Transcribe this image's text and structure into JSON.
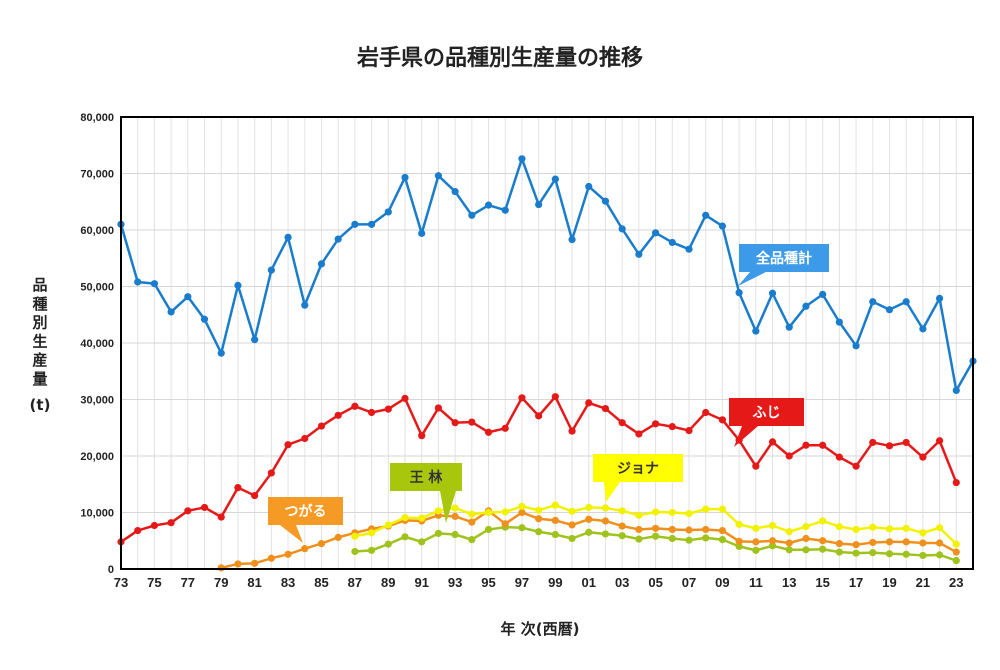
{
  "chart_data": {
    "type": "line",
    "title": "岩手県の品種別生産量の推移",
    "xlabel": "年 次(西暦)",
    "ylabel": "品種別生産量",
    "yunit": "(t)",
    "ylim": [
      0,
      80000
    ],
    "yticks": [
      "0",
      "10,000",
      "20,000",
      "30,000",
      "40,000",
      "50,000",
      "60,000",
      "70,000",
      "80,000"
    ],
    "x_years": [
      1973,
      1974,
      1975,
      1976,
      1977,
      1978,
      1979,
      1980,
      1981,
      1982,
      1983,
      1984,
      1985,
      1986,
      1987,
      1988,
      1989,
      1990,
      1991,
      1992,
      1993,
      1994,
      1995,
      1996,
      1997,
      1998,
      1999,
      2000,
      2001,
      2002,
      2003,
      2004,
      2005,
      2006,
      2007,
      2008,
      2009,
      2010,
      2011,
      2012,
      2013,
      2014,
      2015,
      2016,
      2017,
      2018,
      2019,
      2020,
      2021,
      2022,
      2023,
      2024
    ],
    "xtick_labels": [
      "73",
      "75",
      "77",
      "79",
      "81",
      "83",
      "85",
      "87",
      "89",
      "91",
      "93",
      "95",
      "97",
      "99",
      "01",
      "03",
      "05",
      "07",
      "09",
      "11",
      "13",
      "15",
      "17",
      "19",
      "21",
      "23"
    ],
    "grid": true,
    "series": [
      {
        "name": "全品種計",
        "color": "#1a7ccc",
        "label_color": "#3d9ae8",
        "values": [
          61000,
          50800,
          50500,
          45500,
          48200,
          44200,
          38200,
          50200,
          40600,
          52900,
          58700,
          46700,
          54000,
          58400,
          61000,
          61000,
          63200,
          69300,
          59400,
          69600,
          66800,
          62600,
          64400,
          63500,
          72600,
          64500,
          69000,
          58300,
          67700,
          65100,
          60200,
          55700,
          59500,
          57800,
          56600,
          62600,
          60700,
          48900,
          42100,
          48800,
          42800,
          46500,
          48600,
          43700,
          39500,
          47300,
          45900,
          47300,
          42500,
          47900,
          31600,
          36800
        ]
      },
      {
        "name": "ふじ",
        "color": "#e61919",
        "label_color": "#e61919",
        "values": [
          4800,
          6800,
          7700,
          8200,
          10300,
          10900,
          9200,
          14400,
          13000,
          17000,
          22000,
          23100,
          25300,
          27200,
          28800,
          27700,
          28300,
          30200,
          23600,
          28500,
          25900,
          26000,
          24200,
          24900,
          30300,
          27100,
          30500,
          24400,
          29400,
          28400,
          25900,
          23900,
          25700,
          25200,
          24500,
          27700,
          26400,
          22800,
          18200,
          22500,
          20000,
          21900,
          21900,
          19800,
          18200,
          22400,
          21800,
          22400,
          19800,
          22700,
          15300,
          null
        ]
      },
      {
        "name": "ジョナ",
        "color": "#f2f200",
        "label_color": "#ffff00",
        "values": [
          null,
          null,
          null,
          null,
          null,
          null,
          null,
          null,
          null,
          null,
          null,
          null,
          null,
          null,
          5800,
          6400,
          7800,
          9100,
          9000,
          10300,
          10800,
          9700,
          10000,
          10100,
          11100,
          10400,
          11300,
          10200,
          10900,
          10800,
          10300,
          9500,
          10100,
          10000,
          9800,
          10600,
          10600,
          7900,
          7200,
          7700,
          6600,
          7500,
          8500,
          7500,
          7000,
          7400,
          7100,
          7200,
          6400,
          7300,
          4400,
          null
        ]
      },
      {
        "name": "つがる",
        "color": "#f0901c",
        "label_color": "#f59a24",
        "values": [
          null,
          null,
          null,
          null,
          null,
          null,
          200,
          900,
          1000,
          1900,
          2600,
          3600,
          4500,
          5600,
          6400,
          7100,
          7600,
          8600,
          8500,
          9500,
          9300,
          8300,
          10300,
          8000,
          10000,
          8900,
          8600,
          7800,
          8800,
          8500,
          7600,
          7000,
          7200,
          7000,
          6900,
          7000,
          6800,
          4900,
          4800,
          5000,
          4600,
          5400,
          5000,
          4500,
          4300,
          4700,
          4800,
          4800,
          4600,
          4600,
          3000,
          null
        ]
      },
      {
        "name": "王 林",
        "color": "#9fc31c",
        "label_color": "#a8c70c",
        "values": [
          null,
          null,
          null,
          null,
          null,
          null,
          null,
          null,
          null,
          null,
          null,
          null,
          null,
          null,
          3100,
          3300,
          4400,
          5700,
          4800,
          6300,
          6100,
          5200,
          7000,
          7400,
          7300,
          6600,
          6100,
          5400,
          6500,
          6200,
          5900,
          5300,
          5800,
          5400,
          5100,
          5500,
          5200,
          4000,
          3300,
          4100,
          3400,
          3400,
          3500,
          3000,
          2800,
          2900,
          2700,
          2600,
          2400,
          2500,
          1500,
          null
        ]
      }
    ],
    "annotations": [
      {
        "text": "全品種計",
        "series": "全品種計"
      },
      {
        "text": "ふじ",
        "series": "ふじ"
      },
      {
        "text": "ジョナ",
        "series": "ジョナ"
      },
      {
        "text": "つがる",
        "series": "つがる"
      },
      {
        "text": "王 林",
        "series": "王 林"
      }
    ]
  }
}
